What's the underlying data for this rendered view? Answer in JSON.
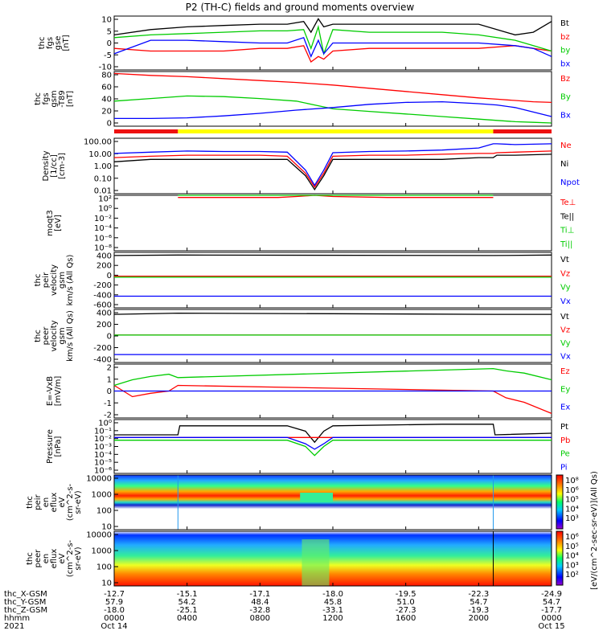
{
  "title": "P2 (TH-C) fields and ground moments overview",
  "colors": {
    "black": "#000000",
    "red": "#ff0000",
    "green": "#00cc00",
    "blue": "#0000ff",
    "bar_red": "#ee1111",
    "bar_yellow": "#ffff00"
  },
  "panels": [
    {
      "id": "fgs_gse",
      "ylabel": [
        "thc",
        "fgs",
        "gse",
        "[nT]"
      ],
      "ticks": [
        "10",
        "5",
        "0",
        "-5",
        "-10"
      ],
      "yrange": [
        -10,
        10
      ],
      "legend": [
        {
          "text": "Bt",
          "color": "#000000"
        },
        {
          "text": "bz",
          "color": "#ff0000"
        },
        {
          "text": "by",
          "color": "#00cc00"
        },
        {
          "text": "bx",
          "color": "#0000ff"
        }
      ]
    },
    {
      "id": "fgs_gsm",
      "ylabel": [
        "thc",
        "fgs",
        "gsm",
        "-T89",
        "[nT]"
      ],
      "ticks": [
        "80",
        "60",
        "40",
        "20",
        "0"
      ],
      "yrange": [
        -5,
        80
      ],
      "legend": [
        {
          "text": "Bz",
          "color": "#ff0000"
        },
        {
          "text": "By",
          "color": "#00cc00"
        },
        {
          "text": "Bx",
          "color": "#0000ff"
        }
      ]
    },
    {
      "id": "density",
      "ylabel": [
        "Density",
        "[1/cc]",
        "[cm-3]"
      ],
      "ticks": [
        "100.00",
        "10.00",
        "1.00",
        "0.10",
        "0.01"
      ],
      "log": true,
      "legend": [
        {
          "text": "Ne",
          "color": "#ff0000"
        },
        {
          "text": "Ni",
          "color": "#000000"
        },
        {
          "text": "Npot",
          "color": "#0000ff"
        }
      ]
    },
    {
      "id": "temp",
      "ylabel": [
        "moqt3",
        "[eV]"
      ],
      "ticks": [
        "10²",
        "10⁰",
        "10⁻²",
        "10⁻⁴",
        "10⁻⁶",
        "10⁻⁸"
      ],
      "log": true,
      "legend": [
        {
          "text": "Te⊥",
          "color": "#ff0000"
        },
        {
          "text": "Te||",
          "color": "#000000"
        },
        {
          "text": "Ti⊥",
          "color": "#00cc00"
        },
        {
          "text": "Ti||",
          "color": "#00cc00"
        }
      ]
    },
    {
      "id": "peir_vel",
      "ylabel": [
        "thc",
        "peir",
        "velocity",
        "gsm",
        "km/s (All Qs)"
      ],
      "ticks": [
        "400",
        "200",
        "0",
        "-200",
        "-400",
        "-600"
      ],
      "legend": [
        {
          "text": "Vt",
          "color": "#000000"
        },
        {
          "text": "Vz",
          "color": "#ff0000"
        },
        {
          "text": "Vy",
          "color": "#00cc00"
        },
        {
          "text": "Vx",
          "color": "#0000ff"
        }
      ]
    },
    {
      "id": "peer_vel",
      "ylabel": [
        "thc",
        "peer",
        "velocity",
        "gsm",
        "km/s (All Qs)"
      ],
      "ticks": [
        "400",
        "200",
        "0",
        "-200",
        "-400"
      ],
      "legend": [
        {
          "text": "Vt",
          "color": "#000000"
        },
        {
          "text": "Vz",
          "color": "#ff0000"
        },
        {
          "text": "Vy",
          "color": "#00cc00"
        },
        {
          "text": "Vx",
          "color": "#0000ff"
        }
      ]
    },
    {
      "id": "efield",
      "ylabel": [
        "E=-VxB",
        "[mV/m]"
      ],
      "ticks": [
        "2",
        "1",
        "0",
        "-1",
        "-2"
      ],
      "legend": [
        {
          "text": "Ez",
          "color": "#ff0000"
        },
        {
          "text": "Ey",
          "color": "#00cc00"
        },
        {
          "text": "Ex",
          "color": "#0000ff"
        }
      ]
    },
    {
      "id": "pressure",
      "ylabel": [
        "Pressure",
        "[nPa]"
      ],
      "ticks": [
        "10⁰",
        "10⁻¹",
        "10⁻²",
        "10⁻³",
        "10⁻⁴",
        "10⁻⁵",
        "10⁻⁶"
      ],
      "log": true,
      "legend": [
        {
          "text": "Pt",
          "color": "#000000"
        },
        {
          "text": "Pb",
          "color": "#ff0000"
        },
        {
          "text": "Pe",
          "color": "#00cc00"
        },
        {
          "text": "Pi",
          "color": "#0000ff"
        }
      ]
    },
    {
      "id": "peir_eflux",
      "ylabel": [
        "thc",
        "peir",
        "en",
        "eflux",
        "eV",
        "(cm^2-s-",
        "sr-eV)"
      ],
      "ticks": [
        "10000",
        "1000",
        "100",
        "10"
      ],
      "log": true,
      "legend": []
    },
    {
      "id": "peer_eflux",
      "ylabel": [
        "thc",
        "peer",
        "en",
        "eflux",
        "eV",
        "(cm^2-s-",
        "sr-eV)"
      ],
      "ticks": [
        "10000",
        "1000",
        "100",
        "10"
      ],
      "log": true,
      "legend": []
    }
  ],
  "colorbars": [
    {
      "ticks": [
        "10⁸",
        "10⁶",
        "10⁵",
        "10⁴",
        "10³"
      ],
      "label": "[eV/(cm^2-sec-sr-eV)](All Qs)"
    },
    {
      "ticks": [
        "10⁶",
        "10⁵",
        "10⁴",
        "10³",
        "10²"
      ],
      "label": "[eV/(cm^2-sec-sr-eV)]"
    }
  ],
  "xaxis": {
    "row_labels": [
      "thc_X-GSM",
      "thc_Y-GSM",
      "thc_Z-GSM",
      "hhmm",
      "2021"
    ],
    "columns": [
      {
        "x": "-12.7",
        "y": "57.9",
        "z": "-18.0",
        "hhmm": "0000",
        "date": "Oct 14"
      },
      {
        "x": "-15.1",
        "y": "54.2",
        "z": "-25.1",
        "hhmm": "0400",
        "date": ""
      },
      {
        "x": "-17.1",
        "y": "48.4",
        "z": "-32.8",
        "hhmm": "0800",
        "date": ""
      },
      {
        "x": "-18.0",
        "y": "45.8",
        "z": "-33.1",
        "hhmm": "1200",
        "date": ""
      },
      {
        "x": "-19.5",
        "y": "51.0",
        "z": "-27.3",
        "hhmm": "1600",
        "date": ""
      },
      {
        "x": "-22.3",
        "y": "54.7",
        "z": "-19.3",
        "hhmm": "2000",
        "date": ""
      },
      {
        "x": "-24.9",
        "y": "54.7",
        "z": "-17.7",
        "hhmm": "0000",
        "date": "Oct 15"
      }
    ]
  },
  "chart_data": {
    "type": "line",
    "title": "P2 (TH-C) fields and ground moments overview",
    "x_ticks_hhmm": [
      "0000",
      "0400",
      "0800",
      "1200",
      "1600",
      "2000",
      "0000"
    ],
    "x_range_hours": [
      0,
      24
    ],
    "mode_bar": [
      {
        "from": 0,
        "to": 3.5,
        "color": "red"
      },
      {
        "from": 3.5,
        "to": 20.8,
        "color": "yellow"
      },
      {
        "from": 20.8,
        "to": 24,
        "color": "red"
      }
    ],
    "series": [
      {
        "panel": "fgs_gse",
        "name": "Bt",
        "x": [
          0,
          2,
          4,
          6,
          8,
          9.5,
          10.4,
          10.8,
          11.2,
          11.5,
          12,
          14,
          16,
          18,
          20,
          22,
          23,
          24
        ],
        "y": [
          3,
          5,
          6,
          6.5,
          7,
          7,
          8,
          4,
          9,
          6,
          7,
          7,
          7,
          7,
          7,
          3,
          4,
          8
        ]
      },
      {
        "panel": "fgs_gse",
        "name": "bz",
        "x": [
          0,
          2,
          4,
          6,
          8,
          9.5,
          10.4,
          10.8,
          11.2,
          11.5,
          12,
          14,
          16,
          18,
          20,
          22,
          23,
          24
        ],
        "y": [
          -2,
          -3,
          -3,
          -3,
          -2,
          -2,
          -1,
          -7,
          -5,
          -6,
          -3,
          -2,
          -2,
          -2,
          -2,
          -1,
          -2,
          -3
        ]
      },
      {
        "panel": "fgs_gse",
        "name": "by",
        "x": [
          0,
          2,
          4,
          6,
          8,
          9.5,
          10.4,
          10.8,
          11.2,
          11.5,
          12,
          14,
          16,
          18,
          20,
          22,
          23,
          24
        ],
        "y": [
          2,
          3,
          3.5,
          4,
          4.5,
          4.5,
          5,
          -2,
          6,
          -4,
          5,
          4,
          4,
          4,
          3,
          1,
          -1,
          -3
        ]
      },
      {
        "panel": "fgs_gse",
        "name": "bx",
        "x": [
          0,
          2,
          4,
          6,
          8,
          9.5,
          10.4,
          10.8,
          11.2,
          11.5,
          12,
          14,
          16,
          18,
          20,
          22,
          23,
          24
        ],
        "y": [
          -4,
          1,
          1,
          0.5,
          0,
          0,
          2,
          -5,
          1,
          -4,
          0,
          0,
          0,
          0,
          0,
          -1,
          -2,
          -5
        ]
      },
      {
        "panel": "fgs_gsm",
        "name": "Bz",
        "x": [
          0,
          2,
          4,
          6,
          8,
          10,
          12,
          14,
          16,
          18,
          20,
          21,
          22,
          23,
          24
        ],
        "y": [
          77,
          74,
          72,
          69,
          66,
          63,
          59,
          54,
          49,
          44,
          39,
          37,
          35,
          33,
          32
        ]
      },
      {
        "panel": "fgs_gsm",
        "name": "By",
        "x": [
          0,
          2,
          4,
          6,
          8,
          10,
          11,
          12,
          14,
          16,
          18,
          20,
          21,
          22,
          23,
          24
        ],
        "y": [
          34,
          38,
          42,
          41,
          38,
          34,
          28,
          22,
          18,
          14,
          10,
          6,
          4,
          2,
          1,
          0
        ]
      },
      {
        "panel": "fgs_gsm",
        "name": "Bx",
        "x": [
          0,
          2,
          4,
          6,
          8,
          10,
          12,
          14,
          16,
          18,
          20,
          21,
          22,
          23,
          24
        ],
        "y": [
          7,
          7,
          8,
          11,
          15,
          20,
          24,
          29,
          32,
          33,
          30,
          28,
          24,
          17,
          10
        ]
      },
      {
        "panel": "density",
        "name": "Ne",
        "x": [
          0,
          2,
          4,
          6,
          8,
          9.5,
          10.5,
          11,
          11.5,
          12,
          14,
          16,
          18,
          20,
          20.8,
          21,
          22,
          24
        ],
        "y": [
          4,
          5,
          6,
          6,
          6,
          5,
          0.3,
          0.03,
          0.3,
          5,
          6,
          6,
          7,
          8,
          8,
          9,
          10,
          12
        ]
      },
      {
        "panel": "density",
        "name": "Ni",
        "x": [
          0,
          2,
          4,
          6,
          8,
          9.5,
          10.5,
          11,
          11.5,
          12,
          14,
          16,
          18,
          20,
          20.8,
          21,
          22,
          24
        ],
        "y": [
          2,
          3,
          3,
          3,
          3,
          3,
          0.2,
          0.02,
          0.2,
          3,
          3,
          3,
          3,
          4,
          4,
          6,
          6,
          7
        ]
      },
      {
        "panel": "density",
        "name": "Npot",
        "x": [
          0,
          2,
          4,
          6,
          8,
          9.5,
          10.5,
          11,
          11.5,
          12,
          14,
          16,
          18,
          20,
          20.8,
          21,
          22,
          24
        ],
        "y": [
          8,
          10,
          12,
          11,
          11,
          10,
          0.5,
          0.04,
          0.5,
          9,
          11,
          12,
          14,
          20,
          40,
          40,
          35,
          40
        ]
      },
      {
        "panel": "temp",
        "name": "Te⊥",
        "x": [
          3.5,
          6,
          9,
          10,
          11,
          12,
          15,
          18,
          20.8
        ],
        "y": [
          40,
          40,
          40,
          60,
          200,
          60,
          40,
          40,
          40
        ]
      },
      {
        "panel": "temp",
        "name": "Ti⊥",
        "x": [
          3.5,
          6,
          9,
          10,
          11,
          12,
          15,
          18,
          20.8
        ],
        "y": [
          400,
          400,
          400,
          500,
          800,
          500,
          400,
          400,
          400
        ]
      },
      {
        "panel": "peir_vel",
        "name": "Vt",
        "x": [
          0,
          3.5,
          20.8,
          24
        ],
        "y": [
          390,
          400,
          390,
          400
        ]
      },
      {
        "panel": "peir_vel",
        "name": "Vz",
        "x": [
          0,
          3.5,
          20.8,
          24
        ],
        "y": [
          0,
          0,
          0,
          0
        ]
      },
      {
        "panel": "peir_vel",
        "name": "Vy",
        "x": [
          0,
          3.5,
          20.8,
          24
        ],
        "y": [
          -20,
          -20,
          -20,
          -20
        ]
      },
      {
        "panel": "peir_vel",
        "name": "Vx",
        "x": [
          0,
          3.5,
          20.8,
          24
        ],
        "y": [
          -380,
          -380,
          -380,
          -380
        ]
      },
      {
        "panel": "peer_vel",
        "name": "Vt",
        "x": [
          0,
          3.5,
          20.8,
          24
        ],
        "y": [
          340,
          360,
          340,
          340
        ]
      },
      {
        "panel": "peer_vel",
        "name": "Vz",
        "x": [
          0,
          3.5,
          20.8,
          24
        ],
        "y": [
          0,
          0,
          0,
          0
        ]
      },
      {
        "panel": "peer_vel",
        "name": "Vy",
        "x": [
          0,
          3.5,
          20.8,
          24
        ],
        "y": [
          0,
          0,
          0,
          0
        ]
      },
      {
        "panel": "peer_vel",
        "name": "Vx",
        "x": [
          0,
          3.5,
          20.8,
          24
        ],
        "y": [
          -320,
          -320,
          -320,
          -320
        ]
      },
      {
        "panel": "efield",
        "name": "Ez",
        "x": [
          0,
          1,
          2,
          3,
          3.5,
          20.8,
          21.5,
          22.5,
          24
        ],
        "y": [
          0.5,
          -0.5,
          -0.2,
          0,
          0.5,
          0,
          -0.6,
          -1,
          -2
        ]
      },
      {
        "panel": "efield",
        "name": "Ey",
        "x": [
          0,
          1,
          2,
          3,
          3.5,
          20.8,
          21.5,
          22.5,
          24
        ],
        "y": [
          0.5,
          1,
          1.3,
          1.5,
          1.2,
          2,
          1.8,
          1.6,
          1
        ]
      },
      {
        "panel": "efield",
        "name": "Ex",
        "x": [
          0,
          3.5,
          20.8,
          24
        ],
        "y": [
          0,
          0,
          0,
          0
        ]
      },
      {
        "panel": "pressure",
        "name": "Pt",
        "x": [
          0,
          3.5,
          3.6,
          9.5,
          10.5,
          11,
          11.5,
          12,
          18,
          20.8,
          20.9,
          24
        ],
        "y": [
          0.02,
          0.02,
          0.2,
          0.2,
          0.05,
          0.003,
          0.05,
          0.2,
          0.3,
          0.3,
          0.02,
          0.03
        ]
      },
      {
        "panel": "pressure",
        "name": "Pb",
        "x": [
          0,
          3.5,
          9.5,
          10.5,
          11,
          11.5,
          12,
          18,
          20.8,
          24
        ],
        "y": [
          0.01,
          0.01,
          0.01,
          0.01,
          0.01,
          0.01,
          0.01,
          0.01,
          0.01,
          0.01
        ]
      },
      {
        "panel": "pressure",
        "name": "Pe",
        "x": [
          0,
          3.5,
          9.5,
          10.5,
          11,
          11.5,
          12,
          18,
          20.8,
          24
        ],
        "y": [
          0.005,
          0.005,
          0.005,
          0.001,
          0.0001,
          0.001,
          0.005,
          0.005,
          0.005,
          0.005
        ]
      },
      {
        "panel": "pressure",
        "name": "Pi",
        "x": [
          0,
          3.5,
          9.5,
          10.5,
          11,
          11.5,
          12,
          18,
          20.8,
          24
        ],
        "y": [
          0.01,
          0.01,
          0.01,
          0.002,
          0.0005,
          0.002,
          0.01,
          0.01,
          0.01,
          0.01
        ]
      }
    ]
  }
}
